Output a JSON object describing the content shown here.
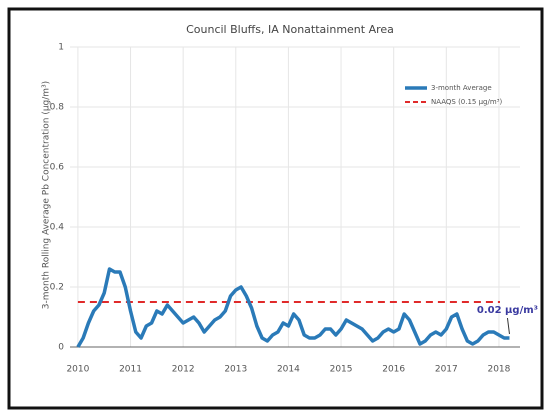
{
  "chart_data": {
    "type": "line",
    "title": "Council Bluffs, IA Nonattainment Area",
    "y_label": "3-month Rolling Average Pb Concentration (µg/m³)",
    "x": [
      2010.0,
      2010.1,
      2010.2,
      2010.3,
      2010.4,
      2010.5,
      2010.6,
      2010.7,
      2010.8,
      2010.9,
      2011.0,
      2011.1,
      2011.2,
      2011.3,
      2011.4,
      2011.5,
      2011.6,
      2011.7,
      2011.8,
      2011.9,
      2012.0,
      2012.1,
      2012.2,
      2012.3,
      2012.4,
      2012.5,
      2012.6,
      2012.7,
      2012.8,
      2012.9,
      2013.0,
      2013.1,
      2013.2,
      2013.3,
      2013.4,
      2013.5,
      2013.6,
      2013.7,
      2013.8,
      2013.9,
      2014.0,
      2014.1,
      2014.2,
      2014.3,
      2014.4,
      2014.5,
      2014.6,
      2014.7,
      2014.8,
      2014.9,
      2015.0,
      2015.1,
      2015.2,
      2015.3,
      2015.4,
      2015.5,
      2015.6,
      2015.7,
      2015.8,
      2015.9,
      2016.0,
      2016.1,
      2016.2,
      2016.3,
      2016.4,
      2016.5,
      2016.6,
      2016.7,
      2016.8,
      2016.9,
      2017.0,
      2017.1,
      2017.2,
      2017.3,
      2017.4,
      2017.5,
      2017.6,
      2017.7,
      2017.8,
      2017.9,
      2018.0,
      2018.1,
      2018.2
    ],
    "series": [
      {
        "name": "3-month Average",
        "color": "#2a7ab8",
        "values": [
          0.0,
          0.03,
          0.08,
          0.12,
          0.14,
          0.18,
          0.26,
          0.25,
          0.25,
          0.2,
          0.12,
          0.05,
          0.03,
          0.07,
          0.08,
          0.12,
          0.11,
          0.14,
          0.12,
          0.1,
          0.08,
          0.09,
          0.1,
          0.08,
          0.05,
          0.07,
          0.09,
          0.1,
          0.12,
          0.17,
          0.19,
          0.2,
          0.17,
          0.13,
          0.07,
          0.03,
          0.02,
          0.04,
          0.05,
          0.08,
          0.07,
          0.11,
          0.09,
          0.04,
          0.03,
          0.03,
          0.04,
          0.06,
          0.06,
          0.04,
          0.06,
          0.09,
          0.08,
          0.07,
          0.06,
          0.04,
          0.02,
          0.03,
          0.05,
          0.06,
          0.05,
          0.06,
          0.11,
          0.09,
          0.05,
          0.01,
          0.02,
          0.04,
          0.05,
          0.04,
          0.06,
          0.1,
          0.11,
          0.06,
          0.02,
          0.01,
          0.02,
          0.04,
          0.05,
          0.05,
          0.04,
          0.03,
          0.03
        ]
      }
    ],
    "reference_line": {
      "name": "NAAQS (0.15 µg/m³)",
      "value": 0.15,
      "color": "#e02a2a"
    },
    "annotation": "0.02 µg/m³",
    "xlim": [
      2009.85,
      2018.4
    ],
    "xticks": [
      2010,
      2011,
      2012,
      2013,
      2014,
      2015,
      2016,
      2017,
      2018
    ],
    "ylim": [
      0,
      1
    ],
    "yticks": [
      0,
      0.2,
      0.4,
      0.6,
      0.8,
      1
    ],
    "grid": true,
    "legend": "upper right"
  }
}
